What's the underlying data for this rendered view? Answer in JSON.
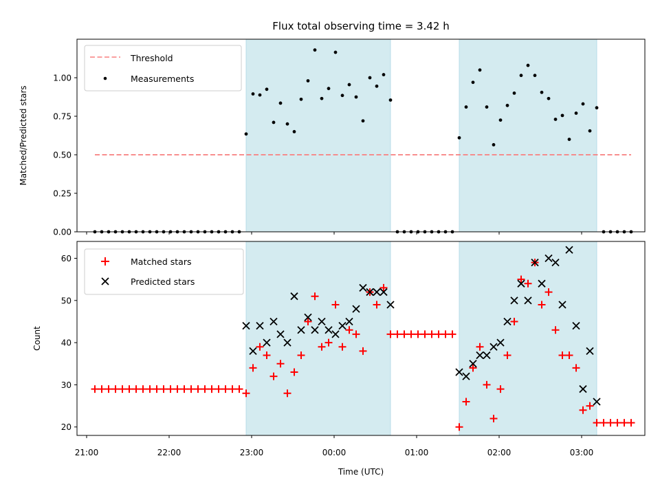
{
  "chart_data": {
    "title": "Flux total observing time = 3.42 h",
    "shaded_intervals": [
      [
        "22:56",
        "00:41"
      ],
      [
        "01:31",
        "03:11"
      ]
    ],
    "shade_color": "#d4ebf0",
    "xlabel": "Time (UTC)",
    "xticks": [
      "21:00",
      "22:00",
      "23:00",
      "00:00",
      "01:00",
      "02:00",
      "03:00"
    ],
    "xlim": [
      "20:53",
      "03:46"
    ],
    "panels": [
      {
        "type": "scatter",
        "ylabel": "Matched/Predicted stars",
        "ylim": [
          0,
          1.25
        ],
        "yticks": [
          "0.00",
          "0.25",
          "0.50",
          "0.75",
          "1.00"
        ],
        "legend_position": "upper-left",
        "threshold": {
          "name": "Threshold",
          "value": 0.5,
          "x_range": [
            "21:06",
            "03:36"
          ],
          "color": "#f87f7f"
        },
        "series": [
          {
            "name": "Measurements",
            "color": "#000000",
            "x": [
              "21:06",
              "21:11",
              "21:16",
              "21:21",
              "21:26",
              "21:31",
              "21:36",
              "21:41",
              "21:46",
              "21:51",
              "21:56",
              "22:01",
              "22:06",
              "22:11",
              "22:16",
              "22:21",
              "22:26",
              "22:31",
              "22:36",
              "22:41",
              "22:46",
              "22:51",
              "22:56",
              "23:01",
              "23:06",
              "23:11",
              "23:16",
              "23:21",
              "23:26",
              "23:31",
              "23:36",
              "23:41",
              "23:46",
              "23:51",
              "23:56",
              "00:01",
              "00:06",
              "00:11",
              "00:16",
              "00:21",
              "00:26",
              "00:31",
              "00:36",
              "00:41",
              "00:46",
              "00:51",
              "00:56",
              "01:01",
              "01:06",
              "01:11",
              "01:16",
              "01:21",
              "01:26",
              "01:31",
              "01:36",
              "01:41",
              "01:46",
              "01:51",
              "01:56",
              "02:01",
              "02:06",
              "02:11",
              "02:16",
              "02:21",
              "02:26",
              "02:31",
              "02:36",
              "02:41",
              "02:46",
              "02:51",
              "02:56",
              "03:01",
              "03:06",
              "03:11",
              "03:16",
              "03:21",
              "03:26",
              "03:31",
              "03:36"
            ],
            "y": [
              0,
              0,
              0,
              0,
              0,
              0,
              0,
              0,
              0,
              0,
              0,
              0,
              0,
              0,
              0,
              0,
              0,
              0,
              0,
              0,
              0,
              0,
              0.635,
              0.895,
              0.888,
              0.925,
              0.71,
              0.835,
              0.7,
              0.65,
              0.86,
              0.98,
              1.18,
              0.865,
              0.93,
              1.165,
              0.885,
              0.955,
              0.875,
              0.72,
              1.0,
              0.945,
              1.02,
              0.855,
              0,
              0,
              0,
              0,
              0,
              0,
              0,
              0,
              0,
              0.61,
              0.81,
              0.97,
              1.05,
              0.81,
              0.565,
              0.725,
              0.82,
              0.9,
              1.015,
              1.08,
              1.015,
              0.905,
              0.865,
              0.73,
              0.755,
              0.6,
              0.77,
              0.83,
              0.655,
              0.805,
              0,
              0,
              0,
              0,
              0
            ]
          }
        ]
      },
      {
        "type": "scatter",
        "ylabel": "Count",
        "ylim": [
          18,
          64
        ],
        "yticks": [
          "20",
          "30",
          "40",
          "50",
          "60"
        ],
        "legend_position": "upper-left",
        "series": [
          {
            "name": "Matched stars",
            "marker": "+",
            "color": "#ff0000",
            "x": [
              "21:06",
              "21:11",
              "21:16",
              "21:21",
              "21:26",
              "21:31",
              "21:36",
              "21:41",
              "21:46",
              "21:51",
              "21:56",
              "22:01",
              "22:06",
              "22:11",
              "22:16",
              "22:21",
              "22:26",
              "22:31",
              "22:36",
              "22:41",
              "22:46",
              "22:51",
              "22:56",
              "23:01",
              "23:06",
              "23:11",
              "23:16",
              "23:21",
              "23:26",
              "23:31",
              "23:36",
              "23:41",
              "23:46",
              "23:51",
              "23:56",
              "00:01",
              "00:06",
              "00:11",
              "00:16",
              "00:21",
              "00:26",
              "00:31",
              "00:36",
              "00:41",
              "00:46",
              "00:51",
              "00:56",
              "01:01",
              "01:06",
              "01:11",
              "01:16",
              "01:21",
              "01:26",
              "01:31",
              "01:36",
              "01:41",
              "01:46",
              "01:51",
              "01:56",
              "02:01",
              "02:06",
              "02:11",
              "02:16",
              "02:21",
              "02:26",
              "02:31",
              "02:36",
              "02:41",
              "02:46",
              "02:51",
              "02:56",
              "03:01",
              "03:06",
              "03:11",
              "03:16",
              "03:21",
              "03:26",
              "03:31",
              "03:36"
            ],
            "y": [
              29,
              29,
              29,
              29,
              29,
              29,
              29,
              29,
              29,
              29,
              29,
              29,
              29,
              29,
              29,
              29,
              29,
              29,
              29,
              29,
              29,
              29,
              28,
              34,
              39,
              37,
              32,
              35,
              28,
              33,
              37,
              45,
              51,
              39,
              40,
              49,
              39,
              43,
              42,
              38,
              52,
              49,
              53,
              42,
              42,
              42,
              42,
              42,
              42,
              42,
              42,
              42,
              42,
              20,
              26,
              34,
              39,
              30,
              22,
              29,
              37,
              45,
              55,
              54,
              59,
              49,
              52,
              43,
              37,
              37,
              34,
              24,
              25,
              21,
              21,
              21,
              21,
              21,
              21
            ]
          },
          {
            "name": "Predicted stars",
            "marker": "x",
            "color": "#000000",
            "x": [
              "22:56",
              "23:01",
              "23:06",
              "23:11",
              "23:16",
              "23:21",
              "23:26",
              "23:31",
              "23:36",
              "23:41",
              "23:46",
              "23:51",
              "23:56",
              "00:01",
              "00:06",
              "00:11",
              "00:16",
              "00:21",
              "00:26",
              "00:31",
              "00:36",
              "00:41",
              "01:31",
              "01:36",
              "01:41",
              "01:46",
              "01:51",
              "01:56",
              "02:01",
              "02:06",
              "02:11",
              "02:16",
              "02:21",
              "02:26",
              "02:31",
              "02:36",
              "02:41",
              "02:46",
              "02:51",
              "02:56",
              "03:01",
              "03:06",
              "03:11"
            ],
            "y": [
              44,
              38,
              44,
              40,
              45,
              42,
              40,
              51,
              43,
              46,
              43,
              45,
              43,
              42,
              44,
              45,
              48,
              53,
              52,
              52,
              52,
              49,
              33,
              32,
              35,
              37,
              37,
              39,
              40,
              45,
              50,
              54,
              50,
              59,
              54,
              60,
              59,
              49,
              62,
              44,
              29,
              38,
              26
            ]
          }
        ]
      }
    ]
  }
}
